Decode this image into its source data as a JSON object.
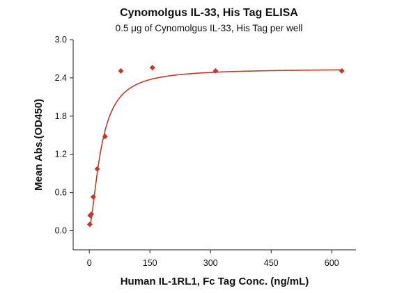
{
  "chart_data": {
    "type": "scatter",
    "title": "Cynomolgus IL-33, His Tag ELISA",
    "subtitle": "0.5 μg of Cynomolgus IL-33, His Tag per well",
    "xlabel": "Human IL-1RL1, Fc Tag Conc. (ng/mL)",
    "ylabel": "Mean Abs.(OD450)",
    "xlim": [
      -40,
      660
    ],
    "ylim": [
      -0.3,
      3.0
    ],
    "xticks": [
      0,
      150,
      300,
      450,
      600
    ],
    "yticks": [
      0.0,
      0.6,
      1.2,
      1.8,
      2.4,
      3.0
    ],
    "xtick_labels": [
      "0",
      "150",
      "300",
      "450",
      "600"
    ],
    "ytick_labels": [
      "0.0",
      "0.6",
      "1.2",
      "1.8",
      "2.4",
      "3.0"
    ],
    "grid": false,
    "colors": {
      "series": "#c0392b",
      "axis": "#222222"
    },
    "series": [
      {
        "x": [
          1.22,
          2.44,
          4.88,
          9.77,
          19.53,
          39.06,
          78.13,
          156.25,
          312.5,
          625
        ],
        "y": [
          0.1,
          0.24,
          0.26,
          0.53,
          0.97,
          1.48,
          2.51,
          2.56,
          2.51,
          2.51
        ],
        "marker": "diamond",
        "fit": "4PL",
        "fit_params": {
          "bottom": 0.05,
          "top": 2.545,
          "ec50": 29.5,
          "hill": 1.6
        }
      }
    ]
  }
}
